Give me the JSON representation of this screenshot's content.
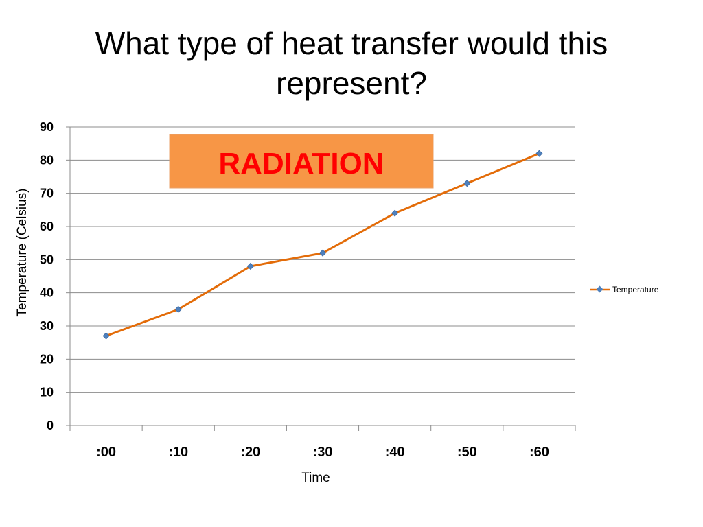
{
  "slide": {
    "title": "What type of heat transfer would this represent?"
  },
  "callout": {
    "text": "RADIATION",
    "fill_color": "#f79646",
    "text_color": "#ff0000"
  },
  "chart_data": {
    "type": "line",
    "categories": [
      ":00",
      ":10",
      ":20",
      ":30",
      ":40",
      ":50",
      ":60"
    ],
    "series": [
      {
        "name": "Temperature",
        "values": [
          27,
          35,
          48,
          52,
          64,
          73,
          82
        ],
        "color": "#e36c09",
        "marker_color": "#4f81bd"
      }
    ],
    "xlabel": "Time",
    "ylabel": "Temperature (Celsius)",
    "ylim": [
      0,
      90
    ],
    "yticks": [
      0,
      10,
      20,
      30,
      40,
      50,
      60,
      70,
      80,
      90
    ],
    "grid": true,
    "legend_position": "right"
  }
}
